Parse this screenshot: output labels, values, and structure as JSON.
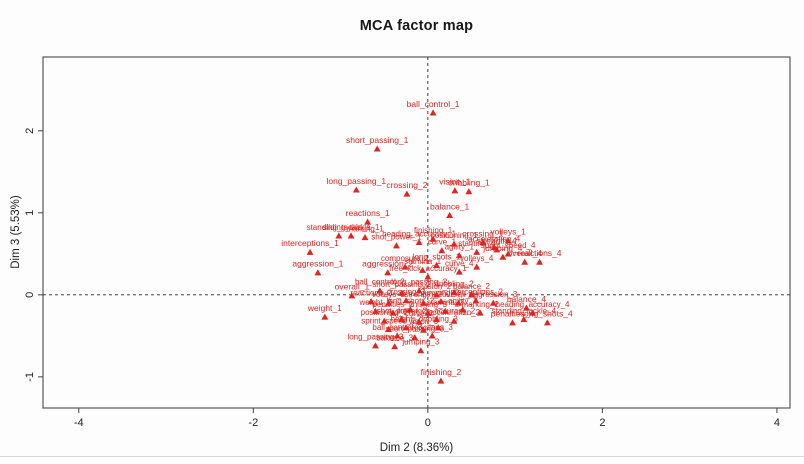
{
  "title": "MCA factor map",
  "chart_data": {
    "type": "scatter",
    "title": "MCA factor map",
    "xlabel": "Dim 2 (8.36%)",
    "ylabel": "Dim 3 (5.53%)",
    "xlim": [
      -4.41,
      4.15
    ],
    "ylim": [
      -1.38,
      2.9
    ],
    "x_ticks": [
      -4,
      -2,
      0,
      2,
      4
    ],
    "y_ticks": [
      -1,
      0,
      1,
      2
    ],
    "grid": false,
    "legend": "none",
    "marker": "filled-triangle",
    "reference_lines": {
      "h": 0,
      "v": 0,
      "style": "dashed"
    },
    "colors": {
      "point": "#df2421",
      "label": "#df2421",
      "box": "#5a5a5a",
      "tick": "#444444",
      "tick_text": "#222222",
      "dashed_line": "#2a2a2a"
    },
    "points": [
      {
        "label": "ball_control_1",
        "x": 0.06,
        "y": 2.22
      },
      {
        "label": "short_passing_1",
        "x": -0.58,
        "y": 1.78
      },
      {
        "label": "long_passing_1",
        "x": -0.82,
        "y": 1.28
      },
      {
        "label": "crossing_2",
        "x": -0.24,
        "y": 1.23
      },
      {
        "label": "vision_1",
        "x": 0.31,
        "y": 1.27
      },
      {
        "label": "dribbling_1",
        "x": 0.47,
        "y": 1.26
      },
      {
        "label": "balance_1",
        "x": 0.25,
        "y": 0.97
      },
      {
        "label": "reactions_1",
        "x": -0.69,
        "y": 0.89
      },
      {
        "label": "volleys_1",
        "x": 0.92,
        "y": 0.66
      },
      {
        "label": "crossing_1",
        "x": 0.63,
        "y": 0.64
      },
      {
        "label": "strength_4",
        "x": 0.79,
        "y": 0.55
      },
      {
        "label": "jumping_4",
        "x": 0.86,
        "y": 0.46
      },
      {
        "label": "overall_4",
        "x": 1.11,
        "y": 0.4
      },
      {
        "label": "reactions_4",
        "x": 1.28,
        "y": 0.4
      },
      {
        "label": "interceptions_1",
        "x": -1.35,
        "y": 0.52
      },
      {
        "label": "aggression_1",
        "x": -1.26,
        "y": 0.27
      },
      {
        "label": "aggression_2",
        "x": -0.46,
        "y": 0.27
      },
      {
        "label": "overall_1",
        "x": -0.87,
        "y": -0.01
      },
      {
        "label": "weight_1",
        "x": -1.18,
        "y": -0.27
      },
      {
        "label": "balance_4",
        "x": 1.13,
        "y": -0.16
      },
      {
        "label": "penalties_4",
        "x": 0.97,
        "y": -0.34
      },
      {
        "label": "long_shots_4",
        "x": 1.37,
        "y": -0.34
      },
      {
        "label": "finishing_2",
        "x": 0.15,
        "y": -1.05
      }
    ],
    "cluster_points": [
      {
        "label": "standing_tackle_1",
        "x": -1.02,
        "y": 0.72
      },
      {
        "label": "sliding_tackle_1",
        "x": -0.88,
        "y": 0.72
      },
      {
        "label": "marking_1",
        "x": -0.72,
        "y": 0.7
      },
      {
        "label": "heading_accuracy_1",
        "x": -0.1,
        "y": 0.64
      },
      {
        "label": "finishing_1",
        "x": 0.06,
        "y": 0.68
      },
      {
        "label": "shot_power_1",
        "x": -0.36,
        "y": 0.6
      },
      {
        "label": "positioning_1",
        "x": 0.3,
        "y": 0.62
      },
      {
        "label": "curve_1",
        "x": 0.16,
        "y": 0.54
      },
      {
        "label": "stamina_4",
        "x": 0.56,
        "y": 0.52
      },
      {
        "label": "acceleration_4",
        "x": 0.76,
        "y": 0.58
      },
      {
        "label": "agility_1",
        "x": 0.36,
        "y": 0.48
      },
      {
        "label": "sprint_speed_4",
        "x": 0.92,
        "y": 0.5
      },
      {
        "label": "composure_1",
        "x": -0.26,
        "y": 0.34
      },
      {
        "label": "stamina_1",
        "x": -0.06,
        "y": 0.3
      },
      {
        "label": "long_shots_1",
        "x": 0.1,
        "y": 0.36
      },
      {
        "label": "volleys_4",
        "x": 0.56,
        "y": 0.34
      },
      {
        "label": "curve_4",
        "x": 0.36,
        "y": 0.28
      },
      {
        "label": "free_kick_accuracy_1",
        "x": 0.0,
        "y": 0.22
      },
      {
        "label": "ball_control_2",
        "x": -0.55,
        "y": 0.05
      },
      {
        "label": "short_passing_2",
        "x": -0.3,
        "y": 0.02
      },
      {
        "label": "long_passing_2",
        "x": -0.1,
        "y": 0.05
      },
      {
        "label": "vision_2",
        "x": 0.1,
        "y": 0.0
      },
      {
        "label": "dribbling_2",
        "x": 0.3,
        "y": 0.03
      },
      {
        "label": "balance_2",
        "x": 0.5,
        "y": 0.0
      },
      {
        "label": "reactions_2",
        "x": -0.65,
        "y": -0.08
      },
      {
        "label": "volleys_2",
        "x": -0.45,
        "y": -0.1
      },
      {
        "label": "crossing_3",
        "x": -0.25,
        "y": -0.07
      },
      {
        "label": "strength_2",
        "x": -0.05,
        "y": -0.1
      },
      {
        "label": "jumping_2",
        "x": 0.15,
        "y": -0.08
      },
      {
        "label": "overall_2",
        "x": 0.35,
        "y": -0.1
      },
      {
        "label": "interceptions_2",
        "x": 0.55,
        "y": -0.07
      },
      {
        "label": "aggression_3",
        "x": 0.75,
        "y": -0.1
      },
      {
        "label": "weight_2",
        "x": -0.6,
        "y": -0.2
      },
      {
        "label": "penalties_2",
        "x": -0.4,
        "y": -0.22
      },
      {
        "label": "long_shots_2",
        "x": -0.2,
        "y": -0.18
      },
      {
        "label": "finishing_3",
        "x": 0.0,
        "y": -0.22
      },
      {
        "label": "stamina_2",
        "x": 0.2,
        "y": -0.2
      },
      {
        "label": "agility_2",
        "x": 0.4,
        "y": -0.18
      },
      {
        "label": "marking_2",
        "x": 0.6,
        "y": -0.22
      },
      {
        "label": "positioning_2",
        "x": -0.5,
        "y": -0.32
      },
      {
        "label": "shot_power_2",
        "x": -0.3,
        "y": -0.3
      },
      {
        "label": "curve_2",
        "x": -0.1,
        "y": -0.33
      },
      {
        "label": "free_kick_accuracy_2",
        "x": 0.1,
        "y": -0.3
      },
      {
        "label": "acceleration_2",
        "x": 0.3,
        "y": -0.32
      },
      {
        "label": "sprint_speed_2",
        "x": -0.45,
        "y": -0.42
      },
      {
        "label": "height_2",
        "x": -0.25,
        "y": -0.4
      },
      {
        "label": "vision_3",
        "x": -0.05,
        "y": -0.43
      },
      {
        "label": "dribbling_3",
        "x": 0.12,
        "y": -0.4
      },
      {
        "label": "ball_control_3",
        "x": -0.35,
        "y": -0.5
      },
      {
        "label": "short_passing_3",
        "x": -0.15,
        "y": -0.52
      },
      {
        "label": "reactions_3",
        "x": 0.05,
        "y": -0.5
      },
      {
        "label": "long_passing_3",
        "x": -0.6,
        "y": -0.62
      },
      {
        "label": "balance_3",
        "x": -0.38,
        "y": -0.63
      },
      {
        "label": "jumping_3",
        "x": -0.08,
        "y": -0.68
      },
      {
        "label": "heading_accuracy_4",
        "x": 1.2,
        "y": -0.22
      },
      {
        "label": "standing_tackle_4",
        "x": 1.1,
        "y": -0.3
      }
    ]
  }
}
